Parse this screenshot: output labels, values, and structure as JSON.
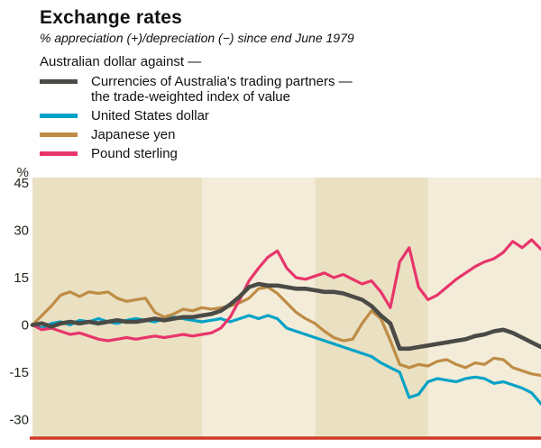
{
  "header": {
    "title": "Exchange rates",
    "subtitle": "% appreciation (+)/depreciation (−) since end June 1979",
    "legend_intro": "Australian dollar against —"
  },
  "legend": {
    "items": [
      {
        "id": "twi",
        "label_line1": "Currencies of Australia's trading partners —",
        "label_line2": "the trade-weighted index of value",
        "color": "#4a4a46"
      },
      {
        "id": "usd",
        "label_line1": "United States dollar",
        "color": "#00a2c7"
      },
      {
        "id": "yen",
        "label_line1": "Japanese yen",
        "color": "#bf8c45"
      },
      {
        "id": "pound",
        "label_line1": "Pound sterling",
        "color": "#e8356b"
      }
    ]
  },
  "chart_data": {
    "type": "line",
    "title": "Exchange rates",
    "subtitle": "% appreciation (+)/depreciation (−) since end June 1979",
    "ylabel": "%",
    "ylim": [
      -35,
      45
    ],
    "yticks": [
      {
        "value": 45,
        "label": "45"
      },
      {
        "value": 30,
        "label": "30"
      },
      {
        "value": 15,
        "label": "15"
      },
      {
        "value": 0,
        "label": "0"
      },
      {
        "value": -15,
        "label": "-15"
      },
      {
        "value": -30,
        "label": "-30"
      }
    ],
    "x_start": "end June 1979",
    "x_end": "late 1983",
    "x_unit": "month",
    "grid": false,
    "legend_position": "above",
    "plot_bg": "#eae0c2",
    "plot_bg_alt": "#f3ecd9",
    "baseline_color": "#cf3928",
    "year_bands": {
      "boundaries_months": [
        0,
        18,
        30,
        42,
        54
      ],
      "shades": [
        "base",
        "alt",
        "base",
        "alt"
      ]
    },
    "series": [
      {
        "id": "twi",
        "name": "Trade-weighted index",
        "color": "#4a4a46",
        "values": [
          0,
          0.5,
          -0.5,
          0.5,
          1,
          0.5,
          1,
          0.5,
          1,
          1.5,
          1,
          1,
          1.5,
          2,
          1.5,
          2,
          2.5,
          2.5,
          3,
          3.5,
          4.5,
          6.5,
          9,
          12,
          13,
          12.5,
          12.5,
          12,
          11.5,
          11.5,
          11,
          10.5,
          10.5,
          10,
          9,
          8,
          6,
          3,
          0.5,
          -7.5,
          -7.5,
          -7,
          -6.5,
          -6,
          -5.5,
          -5,
          -4.5,
          -3.5,
          -3,
          -2,
          -1.5,
          -2.5,
          -4,
          -5.5,
          -7
        ]
      },
      {
        "id": "usd",
        "name": "United States dollar",
        "color": "#00a2c7",
        "values": [
          0,
          -1,
          0.5,
          1,
          0,
          1.5,
          1,
          2,
          1,
          0.5,
          1.5,
          2,
          1.5,
          1,
          2,
          2.5,
          2,
          1.5,
          1,
          1.5,
          2,
          1,
          2,
          3,
          2,
          3,
          2,
          -1,
          -2,
          -3,
          -4,
          -5,
          -6,
          -7,
          -8,
          -9,
          -10,
          -12,
          -13.5,
          -15,
          -23,
          -22,
          -18,
          -17,
          -17.5,
          -18,
          -17,
          -16.5,
          -17,
          -18.5,
          -18,
          -19,
          -20,
          -21.5,
          -25
        ]
      },
      {
        "id": "yen",
        "name": "Japanese yen",
        "color": "#bf8c45",
        "values": [
          0,
          3,
          6,
          9.5,
          10.5,
          9,
          10.5,
          10,
          10.5,
          8.5,
          7.5,
          8,
          8.5,
          4,
          2.5,
          3.5,
          5,
          4.5,
          5.5,
          5,
          5.5,
          6,
          7,
          8.5,
          11.5,
          12,
          10,
          7,
          4,
          2,
          0.5,
          -2,
          -4,
          -5,
          -4.5,
          0.5,
          4.5,
          2,
          -5,
          -12.5,
          -13.5,
          -12.5,
          -13,
          -11.5,
          -11,
          -12.5,
          -13.5,
          -12,
          -12.5,
          -10.5,
          -11,
          -13.5,
          -14.5,
          -15.5,
          -16
        ]
      },
      {
        "id": "pound",
        "name": "Pound sterling",
        "color": "#e8356b",
        "values": [
          0,
          -1.5,
          -1,
          -2,
          -3,
          -2.5,
          -3.5,
          -4.5,
          -5,
          -4.5,
          -4,
          -4.5,
          -4,
          -3.5,
          -4,
          -3.5,
          -3,
          -3.5,
          -3,
          -2.5,
          -1,
          2.5,
          8,
          14,
          18,
          21.5,
          23.5,
          18,
          15,
          14.5,
          15.5,
          16.5,
          15,
          16,
          14.5,
          13,
          14,
          10.5,
          5.5,
          20,
          24.5,
          12,
          8,
          9.5,
          12,
          14.5,
          16.5,
          18.5,
          20,
          21,
          23,
          26.5,
          24.5,
          27,
          24
        ]
      }
    ]
  }
}
